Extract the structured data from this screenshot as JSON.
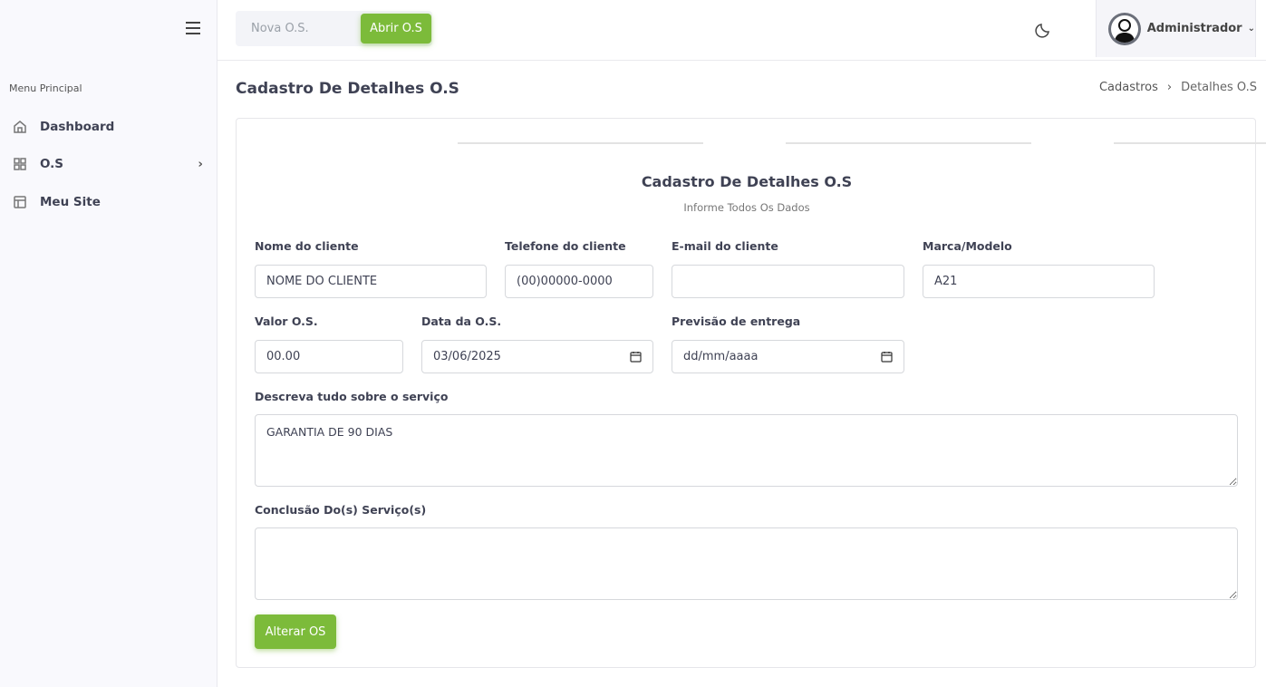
{
  "sidebar": {
    "section_title": "Menu Principal",
    "items": [
      {
        "label": "Dashboard",
        "icon": "home-icon"
      },
      {
        "label": "O.S",
        "icon": "grid-icon"
      },
      {
        "label": "Meu Site",
        "icon": "layout-icon"
      }
    ]
  },
  "header": {
    "search_placeholder": "Nova O.S.",
    "open_button": "Abrir O.S",
    "user_name": "Administrador"
  },
  "page": {
    "title": "Cadastro De Detalhes O.S",
    "breadcrumb": [
      "Cadastros",
      "Detalhes O.S"
    ]
  },
  "form": {
    "title": "Cadastro De Detalhes O.S",
    "subtitle": "Informe Todos Os Dados",
    "fields": {
      "cliente": {
        "label": "Nome do cliente",
        "value": "NOME DO CLIENTE"
      },
      "telefone": {
        "label": "Telefone do cliente",
        "value": "(00)00000-0000"
      },
      "email": {
        "label": "E-mail do cliente",
        "value": ""
      },
      "marca": {
        "label": "Marca/Modelo",
        "value": "A21"
      },
      "valor": {
        "label": "Valor O.S.",
        "value": "00.00"
      },
      "data": {
        "label": "Data da O.S.",
        "value": "03/06/2025"
      },
      "previsao": {
        "label": "Previsão de entrega",
        "value": "dd/mm/aaaa"
      },
      "descricao": {
        "label": "Descreva tudo sobre o serviço",
        "value": "GARANTIA DE 90 DIAS"
      },
      "conclusao": {
        "label": "Conclusão Do(s) Serviço(s)",
        "value": ""
      }
    },
    "submit_label": "Alterar OS"
  },
  "colors": {
    "accent": "#7cbb3a"
  }
}
